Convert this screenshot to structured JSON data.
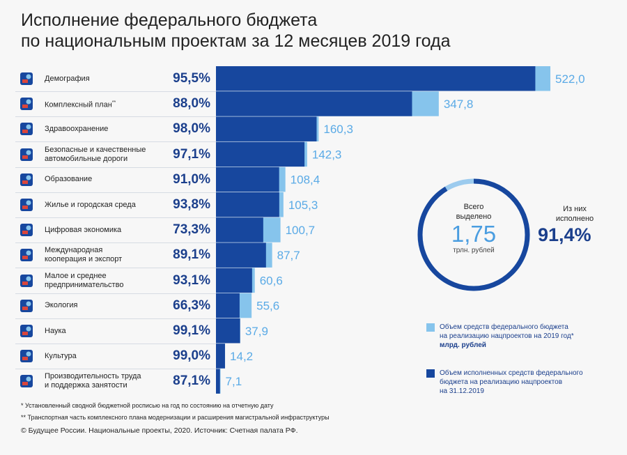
{
  "title": {
    "line1": "Исполнение федерального бюджета",
    "line2": "по национальным проектам за 12 месяцев 2019 года"
  },
  "colors": {
    "dark": "#17479e",
    "light": "#86c4ec",
    "pct": "#1b3f8c",
    "value": "#5aaae6"
  },
  "rows": [
    {
      "label": "Демография",
      "sup": "",
      "pct": "95,5%",
      "icon": "family-icon"
    },
    {
      "label": "Комплексный план",
      "sup": "**",
      "pct": "88,0%",
      "icon": "road-icon"
    },
    {
      "label": "Здравоохранение",
      "sup": "",
      "pct": "98,0%",
      "icon": "medical-cross-icon"
    },
    {
      "label": "Безопасные и качественные\nавтомобильные дороги",
      "sup": "",
      "pct": "97,1%",
      "icon": "city-road-icon"
    },
    {
      "label": "Образование",
      "sup": "",
      "pct": "91,0%",
      "icon": "book-icon"
    },
    {
      "label": "Жилье и городская среда",
      "sup": "",
      "pct": "93,8%",
      "icon": "house-icon"
    },
    {
      "label": "Цифровая экономика",
      "sup": "",
      "pct": "73,3%",
      "icon": "digital-icon"
    },
    {
      "label": "Международная\nкооперация и экспорт",
      "sup": "",
      "pct": "89,1%",
      "icon": "globe-icon"
    },
    {
      "label": "Малое и среднее\nпредпринимательство",
      "sup": "",
      "pct": "93,1%",
      "icon": "rocket-icon"
    },
    {
      "label": "Экология",
      "sup": "",
      "pct": "66,3%",
      "icon": "leaf-icon"
    },
    {
      "label": "Наука",
      "sup": "",
      "pct": "99,1%",
      "icon": "atom-icon"
    },
    {
      "label": "Культура",
      "sup": "",
      "pct": "99,0%",
      "icon": "theater-icon"
    },
    {
      "label": "Производительность труда\nи поддержка занятости",
      "sup": "",
      "pct": "87,1%",
      "icon": "growth-arrow-icon"
    }
  ],
  "chart_data": {
    "type": "bar",
    "categories": [
      "Демография",
      "Комплексный план",
      "Здравоохранение",
      "Безопасные и качественные автомобильные дороги",
      "Образование",
      "Жилье и городская среда",
      "Цифровая экономика",
      "Международная кооперация и экспорт",
      "Малое и среднее предпринимательство",
      "Экология",
      "Наука",
      "Культура",
      "Производительность труда и поддержка занятости"
    ],
    "value_labels": [
      "522,0",
      "347,8",
      "160,3",
      "142,3",
      "108,4",
      "105,3",
      "100,7",
      "87,7",
      "60,6",
      "55,6",
      "37,9",
      "14,2",
      "7,1"
    ],
    "series": [
      {
        "name": "Объем средств федерального бюджета на реализацию нацпроектов на 2019 год",
        "values": [
          522.0,
          347.8,
          160.3,
          142.3,
          108.4,
          105.3,
          100.7,
          87.7,
          60.6,
          55.6,
          37.9,
          14.2,
          7.1
        ]
      },
      {
        "name": "Объем исполненных средств федерального бюджета на реализацию нацпроектов на 31.12.2019",
        "values": [
          498.5,
          306.1,
          157.1,
          138.2,
          98.6,
          98.8,
          73.8,
          78.1,
          56.4,
          36.9,
          37.6,
          14.1,
          6.2
        ]
      }
    ],
    "executed_pct": [
      95.5,
      88.0,
      98.0,
      97.1,
      91.0,
      93.8,
      73.3,
      89.1,
      93.1,
      66.3,
      99.1,
      99.0,
      87.1
    ],
    "orientation": "horizontal",
    "grid": false,
    "legend_position": "bottom-right"
  },
  "summary": {
    "total_label": "Всего\nвыделено",
    "total_value": "1,75",
    "total_unit": "трлн. рублей",
    "executed_label": "Из них\nисполнено",
    "executed_value": "91,4%",
    "executed_fraction": 0.914
  },
  "legend": {
    "allocated": "Объем средств федерального бюджета\nна реализацию нацпроектов на 2019 год*",
    "allocated_unit": "млрд. рублей",
    "executed": "Объем исполненных средств федерального\nбюджета на реализацию нацпроектов\nна 31.12.2019"
  },
  "notes": {
    "n1": "* Установленный сводной бюджетной росписью на год по состоянию на отчетную дату",
    "n2": "** Транспортная часть комплексного плана модернизации и расширения магистральной инфраструктуры"
  },
  "source": "© Будущее России. Национальные проекты, 2020. Источник: Счетная палата РФ."
}
